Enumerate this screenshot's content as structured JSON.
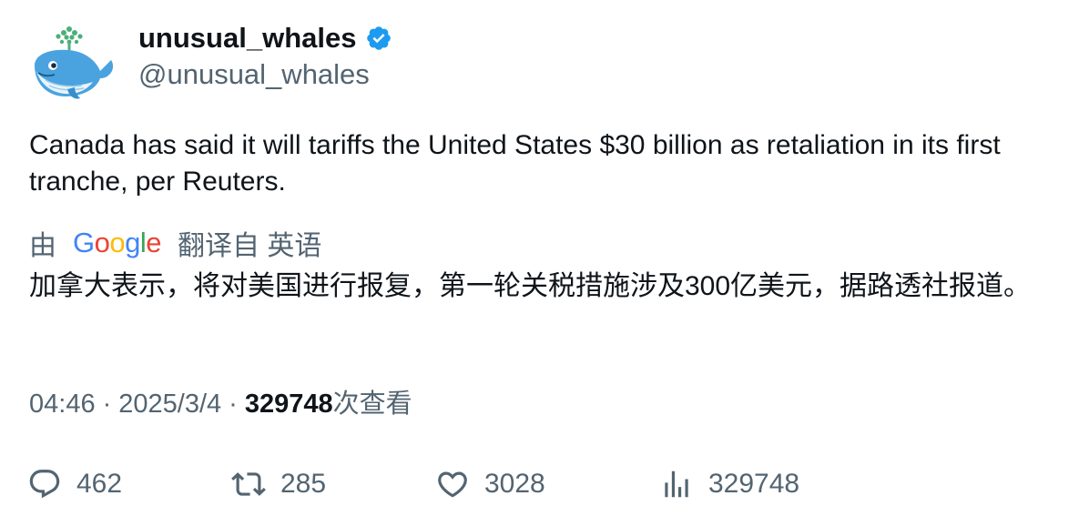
{
  "author": {
    "display_name": "unusual_whales",
    "handle": "@unusual_whales",
    "verified": true,
    "verified_color": "#1d9bf0",
    "avatar_icon": "whale-icon"
  },
  "tweet": {
    "text": "Canada has said it will tariffs the United States $30 billion as retaliation in its first tranche, per Reuters."
  },
  "translation": {
    "prefix": "由",
    "provider_letters": [
      {
        "char": "G",
        "color": "#4285F4"
      },
      {
        "char": "o",
        "color": "#EA4335"
      },
      {
        "char": "o",
        "color": "#FBBC05"
      },
      {
        "char": "g",
        "color": "#4285F4"
      },
      {
        "char": "l",
        "color": "#34A853"
      },
      {
        "char": "e",
        "color": "#EA4335"
      }
    ],
    "suffix": "翻译自 英语",
    "text": "加拿大表示，将对美国进行报复，第一轮关税措施涉及300亿美元，据路透社报道。"
  },
  "meta": {
    "time": "04:46",
    "separator": "·",
    "date": "2025/3/4",
    "views_count": "329748",
    "views_label": "次查看"
  },
  "actions": {
    "replies": "462",
    "retweets": "285",
    "likes": "3028",
    "views": "329748"
  },
  "colors": {
    "text_primary": "#0f1419",
    "text_secondary": "#536471"
  }
}
